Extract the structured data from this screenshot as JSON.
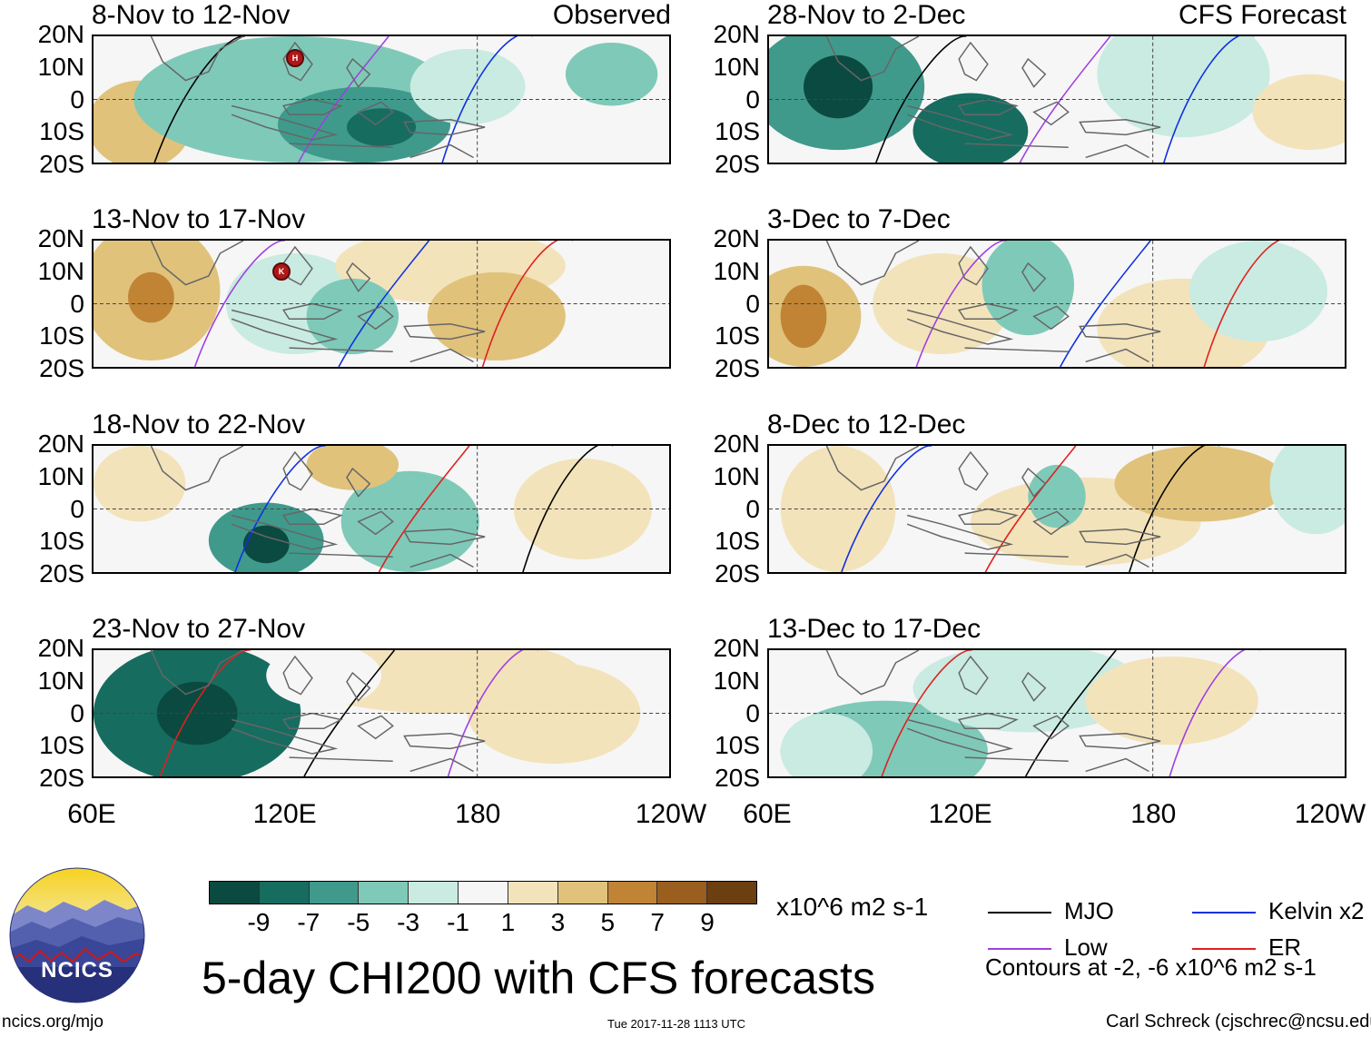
{
  "panels": [
    {
      "title": "8-Nov to 12-Nov",
      "label": "Observed"
    },
    {
      "title": "13-Nov to 17-Nov",
      "label": ""
    },
    {
      "title": "18-Nov to 22-Nov",
      "label": ""
    },
    {
      "title": "23-Nov to 27-Nov",
      "label": ""
    },
    {
      "title": "28-Nov to 2-Dec",
      "label": "CFS Forecast"
    },
    {
      "title": "3-Dec to 7-Dec",
      "label": ""
    },
    {
      "title": "8-Dec to 12-Dec",
      "label": ""
    },
    {
      "title": "13-Dec to 17-Dec",
      "label": ""
    }
  ],
  "lat_labels": [
    "20N",
    "10N",
    "0",
    "10S",
    "20S"
  ],
  "lon_labels": [
    "60E",
    "120E",
    "180",
    "120W"
  ],
  "colorbar": {
    "colors": [
      "#0b4a40",
      "#176c60",
      "#3f9a8c",
      "#7fc9b8",
      "#c9ebe1",
      "#f6f6f6",
      "#f3e3bb",
      "#e0c27b",
      "#c08434",
      "#9a5e1e",
      "#6b3f10"
    ],
    "labels": [
      "-9",
      "-7",
      "-5",
      "-3",
      "-1",
      "1",
      "3",
      "5",
      "7",
      "9"
    ],
    "units": "x10^6 m2 s-1"
  },
  "legend": {
    "items": [
      {
        "name": "MJO",
        "color": "#000000"
      },
      {
        "name": "Low",
        "color": "#a040e0"
      },
      {
        "name": "Kelvin x2",
        "color": "#1030e0"
      },
      {
        "name": "ER",
        "color": "#e02020"
      }
    ],
    "contours_note": "Contours at -2, -6 x10^6 m2 s-1"
  },
  "main_title": "5-day CHI200 with CFS forecasts",
  "logo_text": "NCICS",
  "footer": {
    "left": "ncics.org/mjo",
    "center": "Tue 2017-11-28 1113 UTC",
    "right": "Carl Schreck (cjschrec@ncsu.edu)"
  },
  "storms": [
    {
      "panel": 0,
      "letter": "H"
    },
    {
      "panel": 1,
      "letter": "K"
    }
  ]
}
